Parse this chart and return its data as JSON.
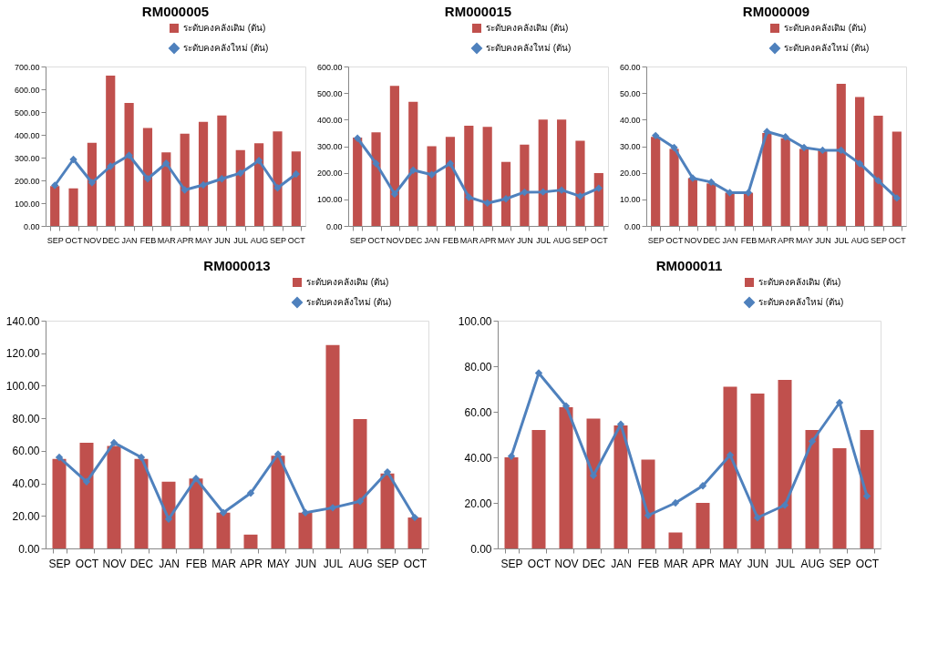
{
  "chart_data": [
    {
      "type": "bar",
      "title": "RM000005",
      "categories": [
        "SEP",
        "OCT",
        "NOV",
        "DEC",
        "JAN",
        "FEB",
        "MAR",
        "APR",
        "MAY",
        "JUN",
        "JUL",
        "AUG",
        "SEP",
        "OCT"
      ],
      "ylim": [
        0,
        700
      ],
      "yticks": [
        {
          "value": 0,
          "label": "0.00"
        },
        {
          "value": 100,
          "label": "100.00"
        },
        {
          "value": 200,
          "label": "200.00"
        },
        {
          "value": 300,
          "label": "300.00"
        },
        {
          "value": 400,
          "label": "400.00"
        },
        {
          "value": 500,
          "label": "500.00"
        },
        {
          "value": 600,
          "label": "600.00"
        },
        {
          "value": 700,
          "label": "700.00"
        }
      ],
      "grid": false,
      "legend": "top right",
      "marker": "diamond",
      "series": [
        {
          "name": "ระดับคงคลังเดิม (ตัน)",
          "type": "bar",
          "color": "#c0504d",
          "values": [
            175,
            165,
            365,
            660,
            540,
            430,
            323,
            405,
            457,
            485,
            333,
            363,
            415,
            327
          ]
        },
        {
          "name": "ระดับคงคลังใหม่ (ตัน)",
          "type": "line",
          "color": "#4f81bd",
          "values": [
            178,
            292,
            190,
            262,
            310,
            207,
            275,
            158,
            180,
            207,
            232,
            287,
            167,
            228
          ]
        }
      ]
    },
    {
      "type": "bar",
      "title": "RM000015",
      "categories": [
        "SEP",
        "OCT",
        "NOV",
        "DEC",
        "JAN",
        "FEB",
        "MAR",
        "APR",
        "MAY",
        "JUN",
        "JUL",
        "AUG",
        "SEP",
        "OCT"
      ],
      "ylim": [
        0,
        600
      ],
      "yticks": [
        {
          "value": 0,
          "label": "0.00"
        },
        {
          "value": 100,
          "label": "100.00"
        },
        {
          "value": 200,
          "label": "200.00"
        },
        {
          "value": 300,
          "label": "300.00"
        },
        {
          "value": 400,
          "label": "400.00"
        },
        {
          "value": 500,
          "label": "500.00"
        },
        {
          "value": 600,
          "label": "600.00"
        }
      ],
      "grid": false,
      "legend": "top right",
      "marker": "diamond",
      "series": [
        {
          "name": "ระดับคงคลังเดิม (ตัน)",
          "type": "bar",
          "color": "#c0504d",
          "values": [
            333,
            352,
            527,
            467,
            300,
            335,
            377,
            373,
            241,
            306,
            400,
            400,
            321,
            199
          ]
        },
        {
          "name": "ระดับคงคลังใหม่ (ตัน)",
          "type": "line",
          "color": "#4f81bd",
          "values": [
            330,
            235,
            120,
            210,
            193,
            235,
            108,
            86,
            102,
            127,
            128,
            135,
            112,
            142
          ]
        }
      ]
    },
    {
      "type": "bar",
      "title": "RM000009",
      "categories": [
        "SEP",
        "OCT",
        "NOV",
        "DEC",
        "JAN",
        "FEB",
        "MAR",
        "APR",
        "MAY",
        "JUN",
        "JUL",
        "AUG",
        "SEP",
        "OCT"
      ],
      "ylim": [
        0,
        60
      ],
      "yticks": [
        {
          "value": 0,
          "label": "0.00"
        },
        {
          "value": 10,
          "label": "10.00"
        },
        {
          "value": 20,
          "label": "20.00"
        },
        {
          "value": 30,
          "label": "30.00"
        },
        {
          "value": 40,
          "label": "40.00"
        },
        {
          "value": 50,
          "label": "50.00"
        },
        {
          "value": 60,
          "label": "60.00"
        }
      ],
      "grid": false,
      "legend": "top right",
      "marker": "diamond",
      "series": [
        {
          "name": "ระดับคงคลังเดิม (ตัน)",
          "type": "bar",
          "color": "#c0504d",
          "values": [
            33.5,
            29,
            18,
            16,
            12.5,
            12.5,
            35,
            33,
            29,
            28.5,
            53.5,
            48.5,
            41.5,
            35.5
          ]
        },
        {
          "name": "ระดับคงคลังใหม่ (ตัน)",
          "type": "line",
          "color": "#4f81bd",
          "values": [
            34,
            29.5,
            18,
            16.5,
            12.5,
            12.5,
            35.5,
            33.5,
            29.5,
            28.5,
            28.5,
            23.5,
            17,
            10.5
          ]
        }
      ]
    },
    {
      "type": "bar",
      "title": "RM000013",
      "categories": [
        "SEP",
        "OCT",
        "NOV",
        "DEC",
        "JAN",
        "FEB",
        "MAR",
        "APR",
        "MAY",
        "JUN",
        "JUL",
        "AUG",
        "SEP",
        "OCT"
      ],
      "ylim": [
        0,
        140
      ],
      "yticks": [
        {
          "value": 0,
          "label": "0.00"
        },
        {
          "value": 20,
          "label": "20.00"
        },
        {
          "value": 40,
          "label": "40.00"
        },
        {
          "value": 60,
          "label": "60.00"
        },
        {
          "value": 80,
          "label": "80.00"
        },
        {
          "value": 100,
          "label": "100.00"
        },
        {
          "value": 120,
          "label": "120.00"
        },
        {
          "value": 140,
          "label": "140.00"
        }
      ],
      "grid": false,
      "legend": "top right",
      "marker": "diamond",
      "series": [
        {
          "name": "ระดับคงคลังเดิม (ตัน)",
          "type": "bar",
          "color": "#c0504d",
          "values": [
            55,
            65,
            63,
            55,
            41,
            43,
            22,
            8.5,
            57,
            22,
            125,
            79.5,
            46,
            19
          ]
        },
        {
          "name": "ระดับคงคลังใหม่ (ตัน)",
          "type": "line",
          "color": "#4f81bd",
          "values": [
            56,
            41,
            65,
            56,
            18,
            43,
            22,
            34,
            58,
            22,
            25,
            29,
            47,
            19
          ]
        }
      ]
    },
    {
      "type": "bar",
      "title": "RM000011",
      "categories": [
        "SEP",
        "OCT",
        "NOV",
        "DEC",
        "JAN",
        "FEB",
        "MAR",
        "APR",
        "MAY",
        "JUN",
        "JUL",
        "AUG",
        "SEP",
        "OCT"
      ],
      "ylim": [
        0,
        100
      ],
      "yticks": [
        {
          "value": 0,
          "label": "0.00"
        },
        {
          "value": 20,
          "label": "20.00"
        },
        {
          "value": 40,
          "label": "40.00"
        },
        {
          "value": 60,
          "label": "60.00"
        },
        {
          "value": 80,
          "label": "80.00"
        },
        {
          "value": 100,
          "label": "100.00"
        }
      ],
      "grid": false,
      "legend": "top right",
      "marker": "diamond",
      "series": [
        {
          "name": "ระดับคงคลังเดิม (ตัน)",
          "type": "bar",
          "color": "#c0504d",
          "values": [
            40,
            52,
            62,
            57,
            54,
            39,
            7,
            20,
            71,
            68,
            74,
            52,
            44,
            52
          ]
        },
        {
          "name": "ระดับคงคลังใหม่ (ตัน)",
          "type": "line",
          "color": "#4f81bd",
          "values": [
            40.5,
            77,
            62.5,
            32,
            54.5,
            14.5,
            20,
            27.5,
            41,
            13.5,
            19,
            47,
            64,
            23
          ]
        }
      ]
    }
  ]
}
